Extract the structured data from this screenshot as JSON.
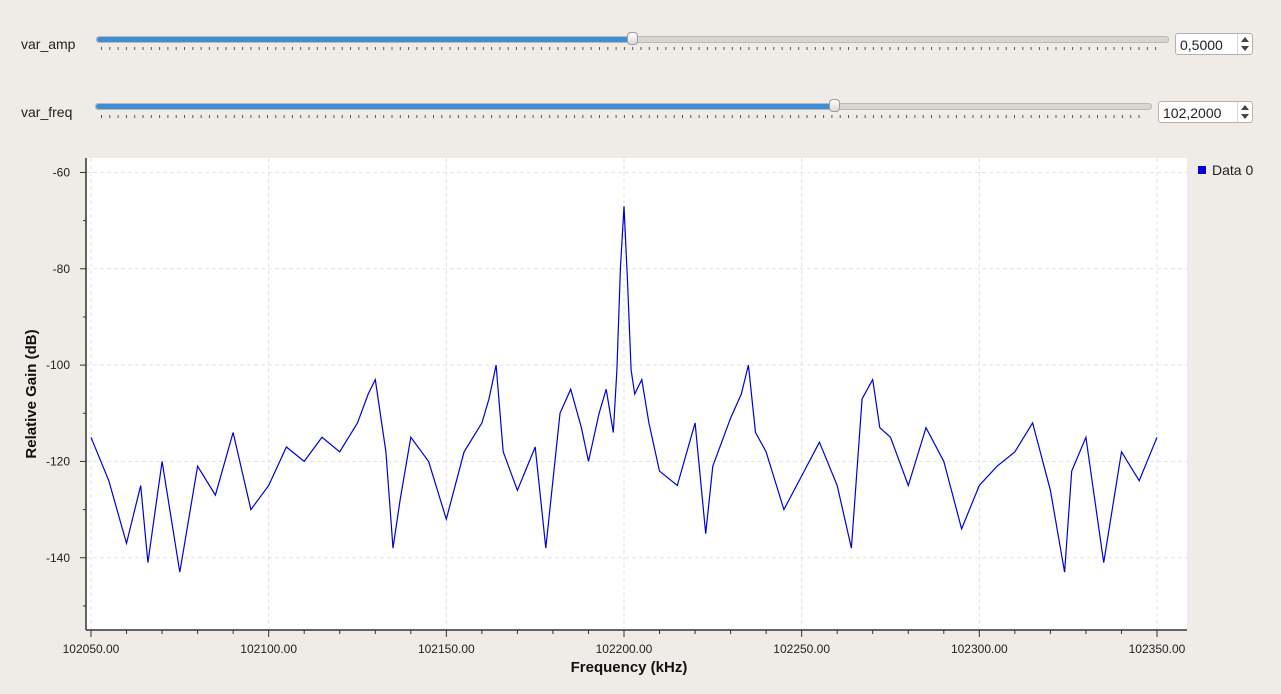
{
  "controls": {
    "amp": {
      "label": "var_amp",
      "value": "0,5000",
      "fraction": 0.5
    },
    "freq": {
      "label": "var_freq",
      "value": "102,2000",
      "fraction": 0.7
    }
  },
  "legend": {
    "label": "Data 0",
    "color": "#0000dd"
  },
  "chart_data": {
    "type": "line",
    "title": "",
    "xlabel": "Frequency (kHz)",
    "ylabel": "Relative Gain (dB)",
    "xlim": [
      102050,
      102350
    ],
    "ylim": [
      -155,
      -57
    ],
    "x_ticks": [
      102050,
      102100,
      102150,
      102200,
      102250,
      102300,
      102350
    ],
    "x_tick_labels": [
      "102050.00",
      "102100.00",
      "102150.00",
      "102200.00",
      "102250.00",
      "102300.00",
      "102350.00"
    ],
    "y_ticks": [
      -60,
      -80,
      -100,
      -120,
      -140
    ],
    "y_tick_labels": [
      "-60",
      "-80",
      "-100",
      "-120",
      "-140"
    ],
    "grid": true,
    "legend_position": "right",
    "series": [
      {
        "name": "Data 0",
        "color": "#0000dd",
        "x": [
          102050,
          102055,
          102060,
          102064,
          102066,
          102070,
          102075,
          102080,
          102085,
          102090,
          102095,
          102100,
          102105,
          102110,
          102115,
          102120,
          102125,
          102128,
          102130,
          102133,
          102135,
          102137,
          102140,
          102145,
          102150,
          102155,
          102160,
          102162,
          102164,
          102166,
          102170,
          102175,
          102178,
          102182,
          102185,
          102188,
          102190,
          102193,
          102195,
          102197,
          102198,
          102199,
          102200,
          102201,
          102202,
          102203,
          102205,
          102207,
          102210,
          102215,
          102220,
          102223,
          102225,
          102230,
          102233,
          102235,
          102237,
          102240,
          102245,
          102250,
          102255,
          102260,
          102264,
          102267,
          102270,
          102272,
          102275,
          102280,
          102285,
          102290,
          102295,
          102300,
          102305,
          102310,
          102315,
          102320,
          102324,
          102326,
          102330,
          102335,
          102340,
          102345,
          102350
        ],
        "y": [
          -115,
          -124,
          -137,
          -125,
          -141,
          -120,
          -143,
          -121,
          -127,
          -114,
          -130,
          -125,
          -117,
          -120,
          -115,
          -118,
          -112,
          -106,
          -103,
          -118,
          -138,
          -128,
          -115,
          -120,
          -132,
          -118,
          -112,
          -107,
          -100,
          -118,
          -126,
          -117,
          -138,
          -110,
          -105,
          -113,
          -120,
          -110,
          -105,
          -114,
          -101,
          -80,
          -67,
          -83,
          -101,
          -106,
          -103,
          -112,
          -122,
          -125,
          -112,
          -135,
          -121,
          -111,
          -106,
          -100,
          -114,
          -118,
          -130,
          -123,
          -116,
          -125,
          -138,
          -107,
          -103,
          -113,
          -115,
          -125,
          -113,
          -120,
          -134,
          -125,
          -121,
          -118,
          -112,
          -126,
          -143,
          -122,
          -115,
          -141,
          -118,
          -124,
          -115
        ]
      }
    ]
  }
}
